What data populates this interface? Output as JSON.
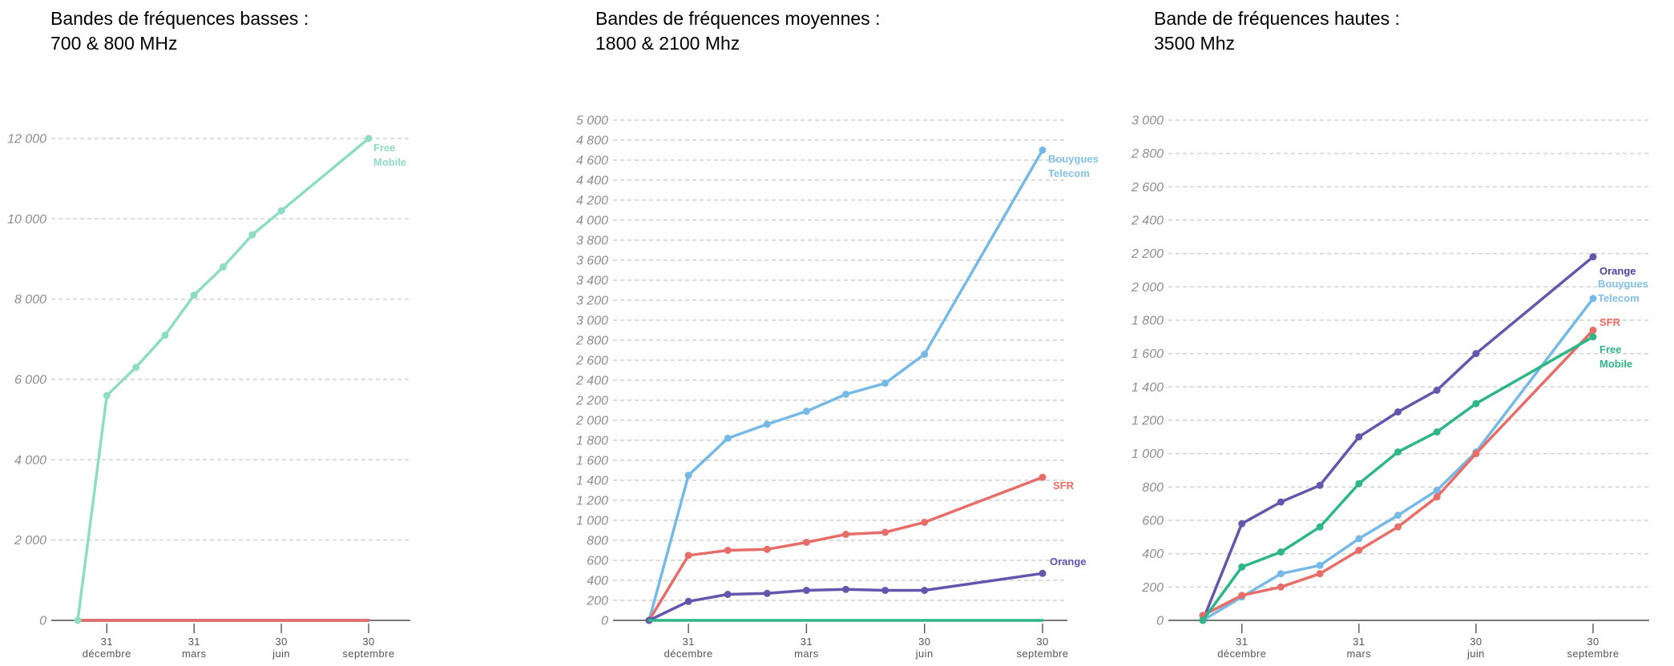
{
  "page": {
    "background": "#ffffff"
  },
  "chart_data": [
    {
      "type": "line",
      "title_lines": [
        "Bandes de fréquences basses :",
        "700 & 800 MHz"
      ],
      "ylim": [
        0,
        12000
      ],
      "y_grid_step": 2000,
      "x_tick_labels": [
        [
          "31",
          "décembre"
        ],
        [
          "31",
          "mars"
        ],
        [
          "30",
          "juin"
        ],
        [
          "30",
          "septembre"
        ]
      ],
      "x_positions_months": [
        0,
        1,
        2,
        3,
        4,
        5,
        6,
        7,
        10
      ],
      "tick_positions_months": [
        1,
        4,
        7,
        10
      ],
      "grid": "dashed",
      "legend_position": "end-of-line",
      "series": [
        {
          "name": "Bouygues Telecom",
          "color": "#76b9e6",
          "values": [
            0,
            0,
            0,
            0,
            0,
            0,
            0,
            0,
            0
          ],
          "show_points": false
        },
        {
          "name": "Orange",
          "color": "#6456ad",
          "values": [
            0,
            0,
            0,
            0,
            0,
            0,
            0,
            0,
            0
          ],
          "show_points": false
        },
        {
          "name": "SFR",
          "color": "#e76e68",
          "values": [
            0,
            0,
            0,
            0,
            0,
            0,
            0,
            0,
            0
          ],
          "show_points": false
        },
        {
          "name": "Free Mobile",
          "color": "#8fdcc4",
          "label_lines": [
            "Free",
            "Mobile"
          ],
          "label_color": "#8fdcc4",
          "values": [
            0,
            5600,
            6300,
            7100,
            8100,
            8800,
            9600,
            10200,
            12000
          ],
          "show_points": true
        }
      ]
    },
    {
      "type": "line",
      "title_lines": [
        "Bandes de fréquences moyennes :",
        "1800 & 2100 Mhz"
      ],
      "ylim": [
        0,
        5000
      ],
      "y_grid_step": 200,
      "x_tick_labels": [
        [
          "31",
          "décembre"
        ],
        [
          "31",
          "mars"
        ],
        [
          "30",
          "juin"
        ],
        [
          "30",
          "septembre"
        ]
      ],
      "x_positions_months": [
        0,
        1,
        2,
        3,
        4,
        5,
        6,
        7,
        10
      ],
      "tick_positions_months": [
        1,
        4,
        7,
        10
      ],
      "grid": "dashed",
      "legend_position": "end-of-line",
      "series": [
        {
          "name": "Bouygues Telecom",
          "color": "#76b9e6",
          "label_lines": [
            "Bouygues",
            "Telecom"
          ],
          "label_color": "#82c0ea",
          "values": [
            0,
            1450,
            1820,
            1960,
            2090,
            2260,
            2370,
            2660,
            4700
          ],
          "show_points": true
        },
        {
          "name": "SFR",
          "color": "#e76e68",
          "label_lines": [
            "SFR"
          ],
          "label_color": "#ee6b64",
          "values": [
            0,
            650,
            700,
            710,
            780,
            860,
            880,
            980,
            1430
          ],
          "show_points": true
        },
        {
          "name": "Orange",
          "color": "#6456ad",
          "label_lines": [
            "Orange"
          ],
          "label_color": "#5f54b0",
          "values": [
            0,
            190,
            260,
            270,
            300,
            310,
            300,
            300,
            470
          ],
          "show_points": true
        },
        {
          "name": "Free Mobile",
          "color": "#2eb685",
          "values": [
            0,
            0,
            0,
            0,
            0,
            0,
            0,
            0,
            0
          ],
          "show_points": false
        }
      ]
    },
    {
      "type": "line",
      "title_lines": [
        "Bande de fréquences hautes :",
        "3500 Mhz"
      ],
      "ylim": [
        0,
        3000
      ],
      "y_grid_step": 200,
      "x_tick_labels": [
        [
          "31",
          "décembre"
        ],
        [
          "31",
          "mars"
        ],
        [
          "30",
          "juin"
        ],
        [
          "30",
          "septembre"
        ]
      ],
      "x_positions_months": [
        0,
        1,
        2,
        3,
        4,
        5,
        6,
        7,
        10
      ],
      "tick_positions_months": [
        1,
        4,
        7,
        10
      ],
      "grid": "dashed",
      "legend_position": "end-of-line",
      "series": [
        {
          "name": "Orange",
          "color": "#6456ad",
          "label_lines": [
            "Orange"
          ],
          "label_color": "#4c3fa5",
          "values": [
            0,
            580,
            710,
            810,
            1100,
            1250,
            1380,
            1600,
            2180
          ],
          "show_points": true
        },
        {
          "name": "Bouygues Telecom",
          "color": "#76b9e6",
          "label_lines": [
            "Bouygues",
            "Telecom"
          ],
          "label_color": "#82c0ea",
          "values": [
            0,
            140,
            280,
            330,
            490,
            630,
            780,
            1010,
            1930
          ],
          "show_points": true
        },
        {
          "name": "SFR",
          "color": "#e76e68",
          "label_lines": [
            "SFR"
          ],
          "label_color": "#ee6b64",
          "values": [
            30,
            150,
            200,
            280,
            420,
            560,
            740,
            1000,
            1740
          ],
          "show_points": true
        },
        {
          "name": "Free Mobile",
          "color": "#2eb685",
          "label_lines": [
            "Free",
            "Mobile"
          ],
          "label_color": "#2eb687",
          "values": [
            0,
            320,
            410,
            560,
            820,
            1010,
            1130,
            1300,
            1700
          ],
          "show_points": true
        }
      ]
    }
  ]
}
